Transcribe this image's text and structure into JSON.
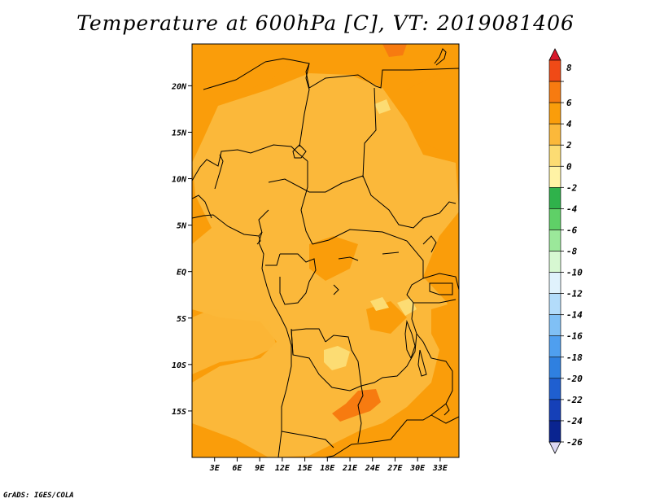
{
  "title": "Temperature at 600hPa [C], VT: 2019081406",
  "credit": "GrADS: IGES/COLA",
  "chart_data": {
    "type": "heatmap",
    "title": "Temperature at 600hPa [C], VT: 2019081406",
    "variable": "Temperature at 600hPa",
    "units": "C",
    "valid_time": "2019081406",
    "x_range": [
      0,
      35.5
    ],
    "y_range": [
      -20,
      24.5
    ],
    "x_ticks": [
      {
        "value": 3,
        "label": "3E"
      },
      {
        "value": 6,
        "label": "6E"
      },
      {
        "value": 9,
        "label": "9E"
      },
      {
        "value": 12,
        "label": "12E"
      },
      {
        "value": 15,
        "label": "15E"
      },
      {
        "value": 18,
        "label": "18E"
      },
      {
        "value": 21,
        "label": "21E"
      },
      {
        "value": 24,
        "label": "24E"
      },
      {
        "value": 27,
        "label": "27E"
      },
      {
        "value": 30,
        "label": "30E"
      },
      {
        "value": 33,
        "label": "33E"
      }
    ],
    "y_ticks": [
      {
        "value": 20,
        "label": "20N"
      },
      {
        "value": 15,
        "label": "15N"
      },
      {
        "value": 10,
        "label": "10N"
      },
      {
        "value": 5,
        "label": "5N"
      },
      {
        "value": 0,
        "label": "EQ"
      },
      {
        "value": -5,
        "label": "5S"
      },
      {
        "value": -10,
        "label": "10S"
      },
      {
        "value": -15,
        "label": "15S"
      }
    ],
    "colorbar": {
      "labels": [
        "8",
        "6",
        "4",
        "2",
        "0",
        "-2",
        "-4",
        "-6",
        "-8",
        "-10",
        "-12",
        "-14",
        "-16",
        "-18",
        "-20",
        "-22",
        "-24",
        "-26"
      ],
      "colors": [
        "#d9182b",
        "#f04a16",
        "#f77b10",
        "#fa9d0a",
        "#fbb83a",
        "#fcdc73",
        "#fff3a5",
        "#2fb24b",
        "#5fd067",
        "#9be89a",
        "#d7f8d2",
        "#e0f2fc",
        "#b3dcfa",
        "#80c0f5",
        "#4f9fef",
        "#2f80e0",
        "#1f5fd0",
        "#1540b8",
        "#0a2490",
        "#0a1060"
      ]
    },
    "field_ranges": {
      "dominant": "0 to 4",
      "warm_spots": "4 to 6",
      "cool_spots": "-2 to 0"
    }
  }
}
